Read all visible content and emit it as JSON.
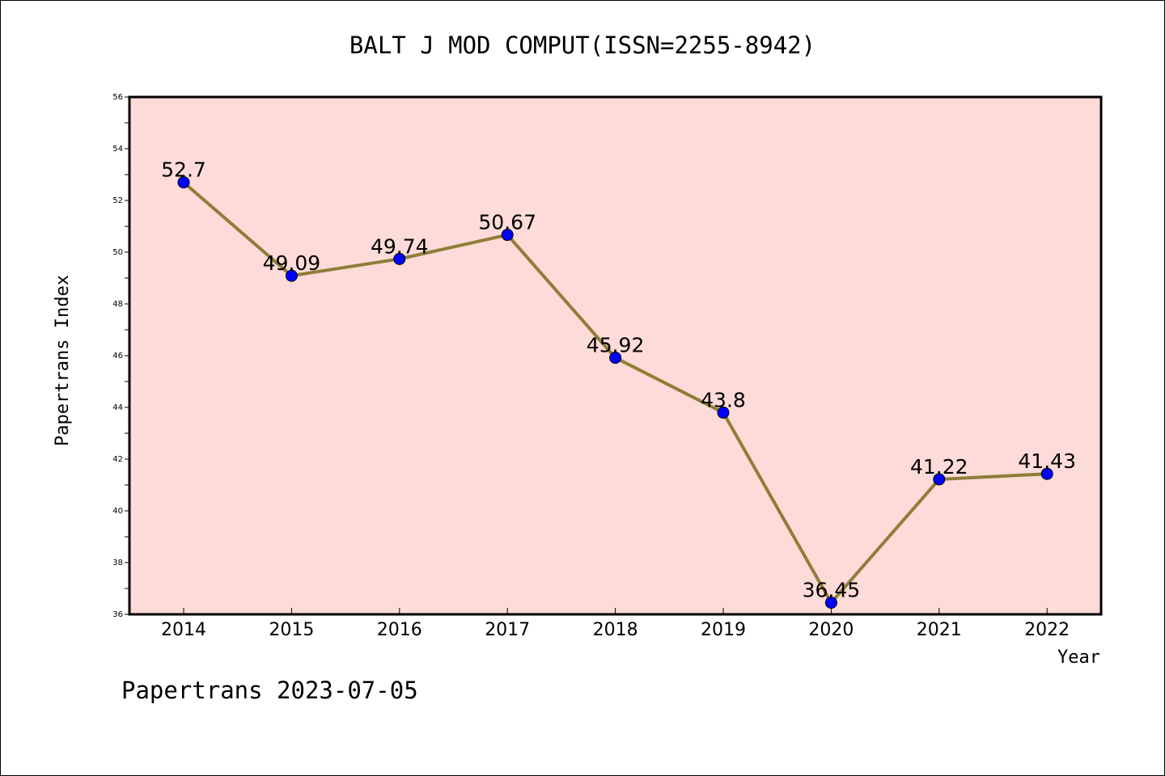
{
  "footer_text": "Papertrans 2023-07-05",
  "colors": {
    "plot_background": "#fddbd8",
    "line": "#8f7d3a",
    "marker": "#0000ff"
  },
  "chart_data": {
    "type": "line",
    "title": "BALT J MOD COMPUT(ISSN=2255-8942)",
    "xlabel": "Year",
    "ylabel": "Papertrans Index",
    "categories": [
      "2014",
      "2015",
      "2016",
      "2017",
      "2018",
      "2019",
      "2020",
      "2021",
      "2022"
    ],
    "values": [
      52.7,
      49.09,
      49.74,
      50.67,
      45.92,
      43.8,
      36.45,
      41.22,
      41.43
    ],
    "data_labels": [
      "52.7",
      "49.09",
      "49.74",
      "50.67",
      "45.92",
      "43.8",
      "36.45",
      "41.22",
      "41.43"
    ],
    "ylim": [
      36,
      56
    ],
    "yticks": [
      36,
      38,
      40,
      42,
      44,
      46,
      48,
      50,
      52,
      54,
      56
    ],
    "grid": false,
    "legend": "none"
  }
}
